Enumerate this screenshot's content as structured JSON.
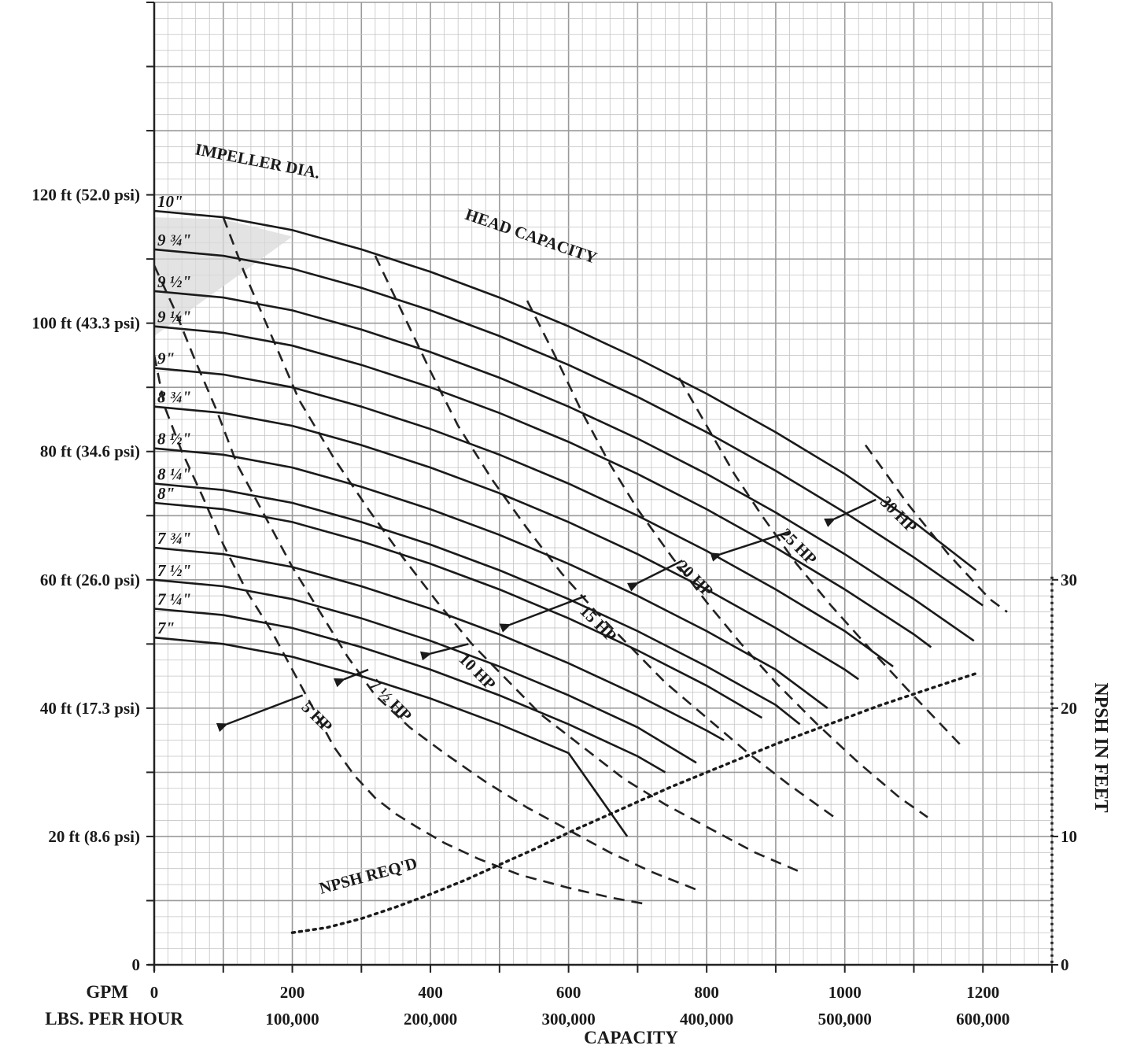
{
  "chart_data": {
    "type": "line",
    "title": "",
    "xlabel": "CAPACITY",
    "x_axis_names": [
      "GPM",
      "LBS.  PER HOUR"
    ],
    "x_ticks": [
      {
        "gpm": "0",
        "lbs": ""
      },
      {
        "gpm": "200",
        "lbs": "100,000"
      },
      {
        "gpm": "400",
        "lbs": "200,000"
      },
      {
        "gpm": "600",
        "lbs": "300,000"
      },
      {
        "gpm": "800",
        "lbs": "400,000"
      },
      {
        "gpm": "1000",
        "lbs": "500,000"
      },
      {
        "gpm": "1200",
        "lbs": "600,000"
      }
    ],
    "xlim": [
      0,
      1300
    ],
    "ylim": [
      0,
      150
    ],
    "y_ticks": [
      {
        "v": 0,
        "label": "0"
      },
      {
        "v": 20,
        "label": "20 ft  (8.6 psi)"
      },
      {
        "v": 40,
        "label": "40 ft  (17.3 psi)"
      },
      {
        "v": 60,
        "label": "60 ft  (26.0 psi)"
      },
      {
        "v": 80,
        "label": "80 ft   (34.6 psi)"
      },
      {
        "v": 100,
        "label": "100 ft (43.3 psi)"
      },
      {
        "v": 120,
        "label": "120 ft  (52.0 psi)"
      }
    ],
    "y2label": "NPSH IN FEET",
    "y2_ticks": [
      {
        "v": 0,
        "label": "0"
      },
      {
        "v": 10,
        "label": "10"
      },
      {
        "v": 20,
        "label": "20"
      },
      {
        "v": 30,
        "label": "30"
      }
    ],
    "y2_scale_note": "NPSH feet = head feet / 2",
    "grid": "on",
    "series": [
      {
        "name": "10\"",
        "x": [
          0,
          100,
          200,
          300,
          400,
          500,
          600,
          700,
          800,
          900,
          1000,
          1100,
          1190
        ],
        "y": [
          117.5,
          116.5,
          114.5,
          111.5,
          108,
          104,
          99.5,
          94.5,
          89,
          83,
          76.5,
          69,
          61.5
        ]
      },
      {
        "name": "9 ¾\"",
        "x": [
          0,
          100,
          200,
          300,
          400,
          500,
          600,
          700,
          800,
          900,
          1000,
          1100,
          1200
        ],
        "y": [
          111.5,
          110.5,
          108.5,
          105.5,
          102,
          98,
          93.5,
          88.5,
          83,
          77,
          70.5,
          63.5,
          56
        ]
      },
      {
        "name": "9 ½\"",
        "x": [
          0,
          100,
          200,
          300,
          400,
          500,
          600,
          700,
          800,
          900,
          1000,
          1100,
          1187
        ],
        "y": [
          105,
          104,
          102,
          99,
          95.5,
          91.5,
          87,
          82,
          76.5,
          70.5,
          64,
          57,
          50.5
        ]
      },
      {
        "name": "9 ¼\"",
        "x": [
          0,
          100,
          200,
          300,
          400,
          500,
          600,
          700,
          800,
          900,
          1000,
          1100,
          1125
        ],
        "y": [
          99.5,
          98.5,
          96.5,
          93.5,
          90,
          86,
          81.5,
          76.5,
          71,
          65,
          58.5,
          51.5,
          49.5
        ]
      },
      {
        "name": "9\"",
        "x": [
          0,
          100,
          200,
          300,
          400,
          500,
          600,
          700,
          800,
          900,
          1000,
          1070
        ],
        "y": [
          93,
          92,
          90,
          87,
          83.5,
          79.5,
          75,
          70,
          64.5,
          58.5,
          52,
          46.5
        ]
      },
      {
        "name": "8 ¾\"",
        "x": [
          0,
          100,
          200,
          300,
          400,
          500,
          600,
          700,
          800,
          900,
          1000,
          1020
        ],
        "y": [
          87,
          86,
          84,
          81,
          77.5,
          73.5,
          69,
          64,
          58.5,
          52.5,
          46,
          44.5
        ]
      },
      {
        "name": "8 ½\"",
        "x": [
          0,
          100,
          200,
          300,
          400,
          500,
          600,
          700,
          800,
          900,
          975
        ],
        "y": [
          80.5,
          79.5,
          77.5,
          74.5,
          71,
          67,
          62.5,
          57.5,
          52,
          46,
          40
        ]
      },
      {
        "name": "8 ¼\"",
        "x": [
          0,
          100,
          200,
          300,
          400,
          500,
          600,
          700,
          800,
          900,
          935
        ],
        "y": [
          75,
          74,
          72,
          69,
          65.5,
          61.5,
          57,
          52,
          46.5,
          40.5,
          37.5
        ]
      },
      {
        "name": "8\"",
        "x": [
          0,
          100,
          200,
          300,
          400,
          500,
          600,
          700,
          800,
          880
        ],
        "y": [
          72,
          71,
          69,
          66,
          62.5,
          58.5,
          54,
          49,
          43.5,
          38.5
        ]
      },
      {
        "name": "7 ¾\"",
        "x": [
          0,
          100,
          200,
          300,
          400,
          500,
          600,
          700,
          800,
          825
        ],
        "y": [
          65,
          64,
          62,
          59,
          55.5,
          51.5,
          47,
          42,
          36.5,
          35
        ]
      },
      {
        "name": "7 ½\"",
        "x": [
          0,
          100,
          200,
          300,
          400,
          500,
          600,
          700,
          785
        ],
        "y": [
          60,
          59,
          57,
          54,
          50.5,
          46.5,
          42,
          37,
          31.5
        ]
      },
      {
        "name": "7 ¼\"",
        "x": [
          0,
          100,
          200,
          300,
          400,
          500,
          600,
          700,
          740
        ],
        "y": [
          55.5,
          54.5,
          52.5,
          49.5,
          46,
          42,
          37.5,
          32.5,
          30
        ]
      },
      {
        "name": "7\"",
        "x": [
          0,
          100,
          200,
          300,
          400,
          500,
          600,
          685
        ],
        "y": [
          51,
          50,
          48,
          45,
          41.5,
          37.5,
          33,
          20
        ]
      }
    ],
    "hp_lines": [
      {
        "name": "5 HP",
        "x": [
          0,
          15,
          40,
          70,
          100,
          135,
          170,
          200,
          230,
          260,
          290,
          320,
          350,
          380,
          420,
          470,
          530,
          600,
          660,
          710
        ],
        "y": [
          95,
          87,
          80,
          73,
          65.5,
          58,
          52,
          46,
          40,
          34,
          29.5,
          26,
          23.5,
          21.5,
          19,
          16.5,
          14,
          12,
          10.5,
          9.5
        ]
      },
      {
        "name": "7 ½ HP",
        "x": [
          0,
          30,
          60,
          90,
          120,
          160,
          200,
          240,
          280,
          320,
          370,
          420,
          480,
          540,
          600,
          660,
          720,
          790
        ],
        "y": [
          109,
          102,
          94,
          86.5,
          78,
          70,
          62,
          55,
          48,
          42,
          37,
          33,
          28.5,
          24.5,
          21,
          17.5,
          14.5,
          11.5
        ]
      },
      {
        "name": "10 HP",
        "x": [
          100,
          130,
          170,
          210,
          260,
          310,
          360,
          410,
          460,
          510,
          560,
          620,
          680,
          740,
          800,
          870,
          935
        ],
        "y": [
          116.5,
          108,
          98,
          88,
          79,
          71,
          63.5,
          56.5,
          50,
          44.5,
          39,
          34,
          29,
          25,
          21.5,
          17.5,
          14.5
        ]
      },
      {
        "name": "15 HP",
        "x": [
          320,
          360,
          400,
          440,
          490,
          540,
          590,
          640,
          690,
          740,
          800,
          860,
          920,
          985
        ],
        "y": [
          110.5,
          101.5,
          92.5,
          84,
          75.5,
          68,
          61,
          55,
          49.5,
          44,
          38.5,
          33,
          28,
          23
        ]
      },
      {
        "name": "20 HP",
        "x": [
          540,
          580,
          620,
          660,
          700,
          750,
          800,
          850,
          900,
          960,
          1020,
          1080,
          1120
        ],
        "y": [
          103.5,
          95,
          86,
          78,
          71,
          63.5,
          56.5,
          50,
          44,
          37.5,
          31.5,
          26,
          23
        ]
      },
      {
        "name": "25 HP",
        "x": [
          760,
          800,
          840,
          880,
          930,
          980,
          1030,
          1090,
          1130,
          1170
        ],
        "y": [
          91.5,
          84,
          76.5,
          70,
          62.5,
          56,
          50,
          43,
          38.5,
          34
        ]
      },
      {
        "name": "30 HP",
        "x": [
          1030,
          1060,
          1090,
          1120,
          1150,
          1180,
          1210,
          1235
        ],
        "y": [
          81,
          76.5,
          72,
          68,
          64,
          60.5,
          57,
          55
        ]
      }
    ],
    "npsh": {
      "name": "NPSH REQ'D",
      "x": [
        200,
        250,
        300,
        350,
        400,
        450,
        500,
        550,
        600,
        650,
        700,
        750,
        800,
        850,
        900,
        950,
        1000,
        1050,
        1100,
        1150,
        1190
      ],
      "y_ft": [
        2.5,
        2.9,
        3.6,
        4.5,
        5.5,
        6.6,
        7.8,
        9.0,
        10.3,
        11.5,
        12.7,
        13.9,
        15.0,
        16.1,
        17.2,
        18.2,
        19.2,
        20.2,
        21.1,
        22.0,
        22.7
      ]
    },
    "annotations": [
      {
        "text": "IMPELLER DIA.",
        "angle": 11
      },
      {
        "text": "HEAD CAPACITY",
        "angle": 19
      },
      {
        "text": "NPSH REQ'D",
        "angle": -15
      }
    ]
  }
}
